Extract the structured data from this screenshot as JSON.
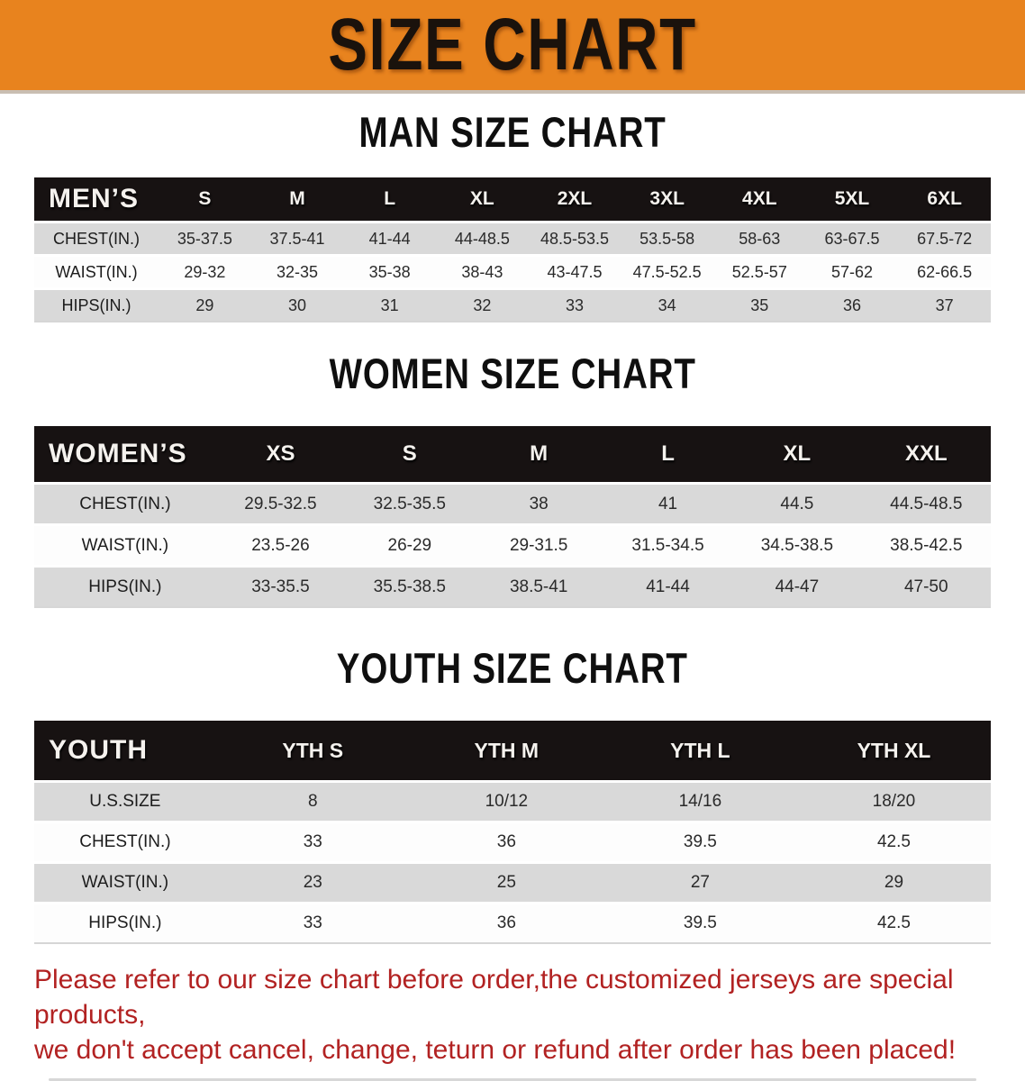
{
  "theme": {
    "banner_bg": "#E8831E",
    "table_header_bg": "#171212",
    "row_stripe": "#D9D9D9",
    "footer_color": "#B22222"
  },
  "banner": {
    "title": "SIZE CHART"
  },
  "sections": [
    {
      "id": "men",
      "heading": "MAN SIZE CHART",
      "table": {
        "corner_label": "MEN’S",
        "columns": [
          "S",
          "M",
          "L",
          "XL",
          "2XL",
          "3XL",
          "4XL",
          "5XL",
          "6XL"
        ],
        "rows": [
          {
            "label": "CHEST(IN.)",
            "values": [
              "35-37.5",
              "37.5-41",
              "41-44",
              "44-48.5",
              "48.5-53.5",
              "53.5-58",
              "58-63",
              "63-67.5",
              "67.5-72"
            ]
          },
          {
            "label": "WAIST(IN.)",
            "values": [
              "29-32",
              "32-35",
              "35-38",
              "38-43",
              "43-47.5",
              "47.5-52.5",
              "52.5-57",
              "57-62",
              "62-66.5"
            ]
          },
          {
            "label": "HIPS(IN.)",
            "values": [
              "29",
              "30",
              "31",
              "32",
              "33",
              "34",
              "35",
              "36",
              "37"
            ]
          }
        ]
      }
    },
    {
      "id": "women",
      "heading": "WOMEN SIZE CHART",
      "table": {
        "corner_label": "WOMEN’S",
        "columns": [
          "XS",
          "S",
          "M",
          "L",
          "XL",
          "XXL"
        ],
        "rows": [
          {
            "label": "CHEST(IN.)",
            "values": [
              "29.5-32.5",
              "32.5-35.5",
              "38",
              "41",
              "44.5",
              "44.5-48.5"
            ]
          },
          {
            "label": "WAIST(IN.)",
            "values": [
              "23.5-26",
              "26-29",
              "29-31.5",
              "31.5-34.5",
              "34.5-38.5",
              "38.5-42.5"
            ]
          },
          {
            "label": "HIPS(IN.)",
            "values": [
              "33-35.5",
              "35.5-38.5",
              "38.5-41",
              "41-44",
              "44-47",
              "47-50"
            ]
          }
        ]
      }
    },
    {
      "id": "youth",
      "heading": "YOUTH SIZE CHART",
      "table": {
        "corner_label": "YOUTH",
        "columns": [
          "YTH S",
          "YTH M",
          "YTH L",
          "YTH XL"
        ],
        "rows": [
          {
            "label": "U.S.SIZE",
            "values": [
              "8",
              "10/12",
              "14/16",
              "18/20"
            ]
          },
          {
            "label": "CHEST(IN.)",
            "values": [
              "33",
              "36",
              "39.5",
              "42.5"
            ]
          },
          {
            "label": "WAIST(IN.)",
            "values": [
              "23",
              "25",
              "27",
              "29"
            ]
          },
          {
            "label": "HIPS(IN.)",
            "values": [
              "33",
              "36",
              "39.5",
              "42.5"
            ]
          }
        ]
      }
    }
  ],
  "footer": {
    "lines": [
      "Please refer to our size chart before order,the customized jerseys are special products,",
      "we don't accept cancel, change, teturn or refund after order has been placed!"
    ]
  }
}
